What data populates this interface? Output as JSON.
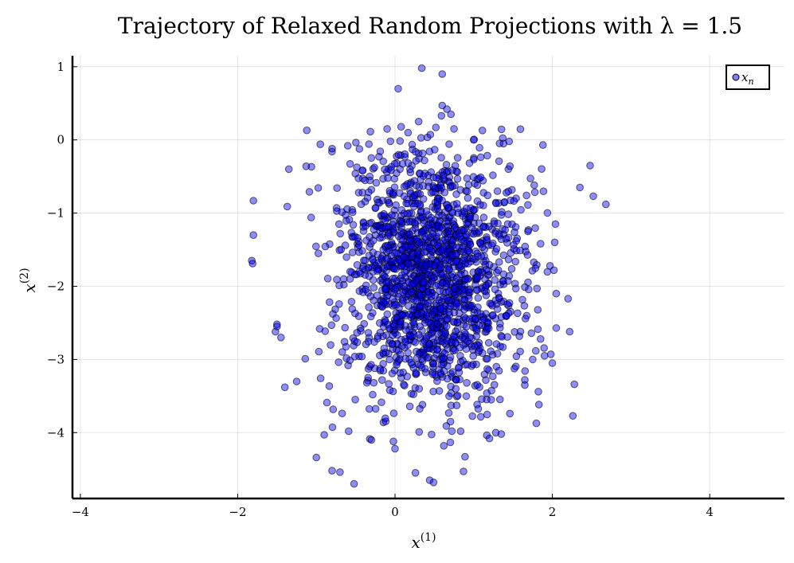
{
  "chart_data": {
    "type": "scatter",
    "title": "Trajectory of Relaxed Random Projections with λ = 1.5",
    "xlabel": "x(1)",
    "ylabel": "x(2)",
    "xlim": [
      -4.1,
      4.95
    ],
    "ylim": [
      -4.9,
      1.15
    ],
    "xticks": [
      -4,
      -2,
      0,
      2,
      4
    ],
    "xtick_labels": [
      "−4",
      "−2",
      "0",
      "2",
      "4"
    ],
    "yticks": [
      1,
      0,
      -1,
      -2,
      -3,
      -4
    ],
    "ytick_labels": [
      "1",
      "0",
      "−1",
      "−2",
      "−3",
      "−4"
    ],
    "grid": true,
    "legend": "top-right",
    "series": [
      {
        "name": "xn",
        "color": "#0000ff",
        "points": [
          [
            0.34,
            0.98
          ],
          [
            0.6,
            0.9
          ],
          [
            0.04,
            0.7
          ],
          [
            0.6,
            0.47
          ],
          [
            0.66,
            0.42
          ],
          [
            0.71,
            0.35
          ],
          [
            0.59,
            0.33
          ],
          [
            0.3,
            0.25
          ],
          [
            -0.1,
            0.15
          ],
          [
            0.75,
            0.15
          ],
          [
            1.0,
            0.0
          ],
          [
            1.38,
            -0.05
          ],
          [
            1.45,
            -0.02
          ],
          [
            -0.95,
            -0.06
          ],
          [
            -0.6,
            -0.08
          ],
          [
            -0.8,
            -0.12
          ],
          [
            -1.13,
            -0.36
          ],
          [
            -1.35,
            -0.4
          ],
          [
            2.48,
            -0.35
          ],
          [
            2.35,
            -0.65
          ],
          [
            2.52,
            -0.77
          ],
          [
            2.68,
            -0.88
          ],
          [
            -1.8,
            -0.83
          ],
          [
            -1.8,
            -1.3
          ],
          [
            -1.82,
            -1.65
          ],
          [
            -1.81,
            -1.69
          ],
          [
            2.04,
            -1.15
          ],
          [
            2.03,
            -1.4
          ],
          [
            1.97,
            -1.72
          ],
          [
            2.02,
            -1.78
          ],
          [
            2.05,
            -2.1
          ],
          [
            2.2,
            -2.17
          ],
          [
            2.05,
            -2.57
          ],
          [
            2.22,
            -2.62
          ],
          [
            -1.5,
            -2.52
          ],
          [
            -1.52,
            -2.62
          ],
          [
            -1.45,
            -2.7
          ],
          [
            -1.5,
            -2.55
          ],
          [
            -1.4,
            -3.38
          ],
          [
            -1.25,
            -3.3
          ],
          [
            2.28,
            -3.34
          ],
          [
            2.26,
            -3.77
          ],
          [
            -0.9,
            -4.03
          ],
          [
            -1.0,
            -4.34
          ],
          [
            -0.8,
            -4.52
          ],
          [
            -0.7,
            -4.54
          ],
          [
            -0.52,
            -4.7
          ],
          [
            0.26,
            -4.55
          ],
          [
            0.44,
            -4.65
          ],
          [
            0.49,
            -4.68
          ],
          [
            0.87,
            -4.53
          ],
          [
            0.89,
            -4.33
          ],
          [
            1.2,
            -4.08
          ],
          [
            1.35,
            -4.02
          ],
          [
            1.28,
            -4.0
          ],
          [
            0.0,
            -4.22
          ],
          [
            -0.02,
            -4.12
          ],
          [
            0.62,
            -4.18
          ],
          [
            -0.3,
            -4.1
          ],
          [
            1.65,
            -3.28
          ],
          [
            1.65,
            -3.35
          ],
          [
            1.75,
            -3.0
          ],
          [
            1.9,
            -2.95
          ],
          [
            2.0,
            -3.05
          ],
          [
            1.85,
            -2.72
          ]
        ],
        "core": {
          "center": [
            0.45,
            -1.85
          ],
          "spread": [
            0.58,
            0.88
          ],
          "count": 1750
        }
      }
    ]
  }
}
